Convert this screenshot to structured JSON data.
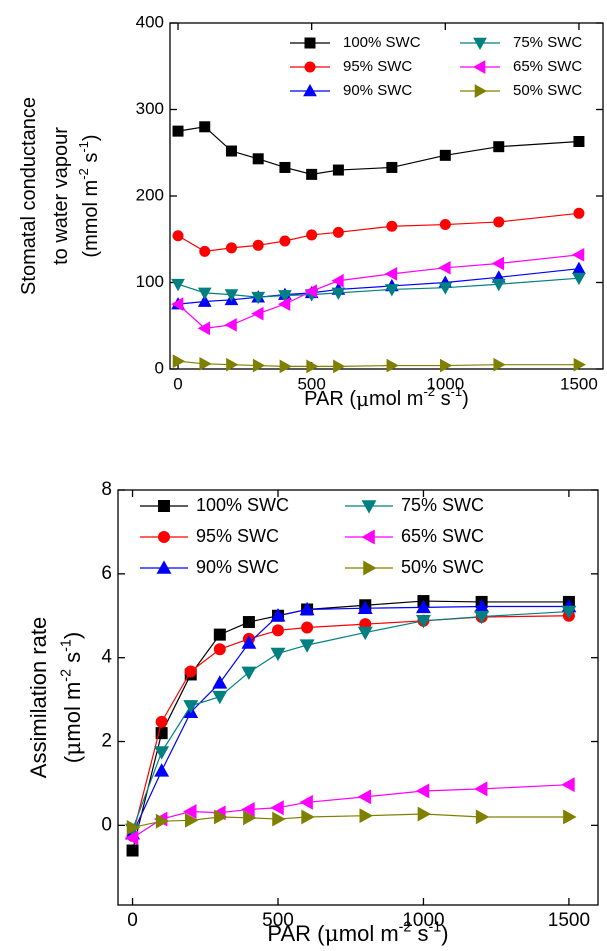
{
  "chart_data": [
    {
      "type": "line",
      "ylabel": [
        [
          {
            "text": "Stomatal conductance"
          }
        ],
        [
          {
            "text": "to water vapour"
          }
        ],
        [
          {
            "text": "(mmol m"
          },
          {
            "text": "-2",
            "sup": true
          },
          {
            "text": " s"
          },
          {
            "text": "-1",
            "sup": true
          },
          {
            "text": ")"
          }
        ]
      ],
      "xlabel": [
        {
          "text": "PAR ("
        },
        {
          "text": "μ",
          "symbol": true
        },
        {
          "text": "mol m"
        },
        {
          "text": "-2",
          "sup": true
        },
        {
          "text": " s"
        },
        {
          "text": "-1",
          "sup": true
        },
        {
          "text": ")"
        }
      ],
      "x": [
        0,
        100,
        200,
        300,
        400,
        500,
        600,
        800,
        1000,
        1200,
        1500
      ],
      "xlim": [
        -30,
        1590
      ],
      "xticks": [
        0,
        500,
        1000,
        1500
      ],
      "ylim": [
        0,
        400
      ],
      "yticks": [
        0,
        100,
        200,
        300,
        400
      ],
      "series": [
        {
          "name": "100% SWC",
          "color": "#000000",
          "marker": "square",
          "values": [
            275,
            280,
            252,
            243,
            233,
            225,
            230,
            233,
            247,
            257,
            263
          ]
        },
        {
          "name": "95% SWC",
          "color": "#ff0000",
          "marker": "circle",
          "values": [
            154,
            136,
            140,
            143,
            148,
            155,
            158,
            165,
            167,
            170,
            180
          ]
        },
        {
          "name": "90% SWC",
          "color": "#0000ff",
          "marker": "triangle-up",
          "values": [
            75,
            78,
            80,
            83,
            86,
            88,
            92,
            96,
            100,
            106,
            116
          ]
        },
        {
          "name": "75% SWC",
          "color": "#008080",
          "marker": "triangle-down",
          "values": [
            98,
            88,
            86,
            83,
            85,
            86,
            88,
            92,
            94,
            98,
            105
          ]
        },
        {
          "name": "65% SWC",
          "color": "#ff00ff",
          "marker": "triangle-left",
          "values": [
            75,
            47,
            51,
            64,
            75,
            90,
            102,
            110,
            117,
            122,
            132
          ]
        },
        {
          "name": "50% SWC",
          "color": "#808000",
          "marker": "triangle-right",
          "values": [
            9,
            6,
            5,
            4,
            3,
            3,
            3,
            4,
            4,
            5,
            5
          ]
        }
      ]
    },
    {
      "type": "line",
      "ylabel": [
        [
          {
            "text": "Assimilation rate"
          }
        ],
        [
          {
            "text": "("
          },
          {
            "text": "μ",
            "symbol": true
          },
          {
            "text": "mol m"
          },
          {
            "text": "-2",
            "sup": true
          },
          {
            "text": " s"
          },
          {
            "text": "-1",
            "sup": true
          },
          {
            "text": ")"
          }
        ]
      ],
      "xlabel": [
        {
          "text": "PAR ("
        },
        {
          "text": "μ",
          "symbol": true
        },
        {
          "text": "mol m"
        },
        {
          "text": "-2",
          "sup": true
        },
        {
          "text": " s"
        },
        {
          "text": "-1",
          "sup": true
        },
        {
          "text": ")"
        }
      ],
      "x": [
        0,
        100,
        200,
        300,
        400,
        500,
        600,
        800,
        1000,
        1200,
        1500
      ],
      "xlim": [
        -50,
        1600
      ],
      "xticks": [
        0,
        500,
        1000,
        1500
      ],
      "ylim": [
        -1.9,
        8
      ],
      "yticks": [
        0,
        2,
        4,
        6,
        8
      ],
      "series": [
        {
          "name": "100% SWC",
          "color": "#000000",
          "marker": "square",
          "values": [
            -0.6,
            2.2,
            3.6,
            4.55,
            4.85,
            5.0,
            5.15,
            5.25,
            5.35,
            5.33,
            5.33
          ]
        },
        {
          "name": "95% SWC",
          "color": "#ff0000",
          "marker": "circle",
          "values": [
            -0.25,
            2.47,
            3.67,
            4.2,
            4.45,
            4.65,
            4.72,
            4.8,
            4.88,
            4.97,
            5.0
          ]
        },
        {
          "name": "90% SWC",
          "color": "#0000ff",
          "marker": "triangle-up",
          "values": [
            -0.2,
            1.3,
            2.7,
            3.4,
            4.35,
            5.0,
            5.15,
            5.18,
            5.2,
            5.22,
            5.22
          ]
        },
        {
          "name": "75% SWC",
          "color": "#008080",
          "marker": "triangle-down",
          "values": [
            -0.1,
            1.75,
            2.85,
            3.07,
            3.65,
            4.1,
            4.3,
            4.6,
            4.88,
            4.98,
            5.1
          ]
        },
        {
          "name": "65% SWC",
          "color": "#ff00ff",
          "marker": "triangle-left",
          "values": [
            -0.3,
            0.15,
            0.33,
            0.3,
            0.38,
            0.42,
            0.55,
            0.68,
            0.82,
            0.87,
            0.97
          ]
        },
        {
          "name": "50% SWC",
          "color": "#808000",
          "marker": "triangle-right",
          "values": [
            -0.05,
            0.1,
            0.12,
            0.2,
            0.18,
            0.15,
            0.2,
            0.23,
            0.27,
            0.2,
            0.2
          ]
        }
      ]
    }
  ]
}
